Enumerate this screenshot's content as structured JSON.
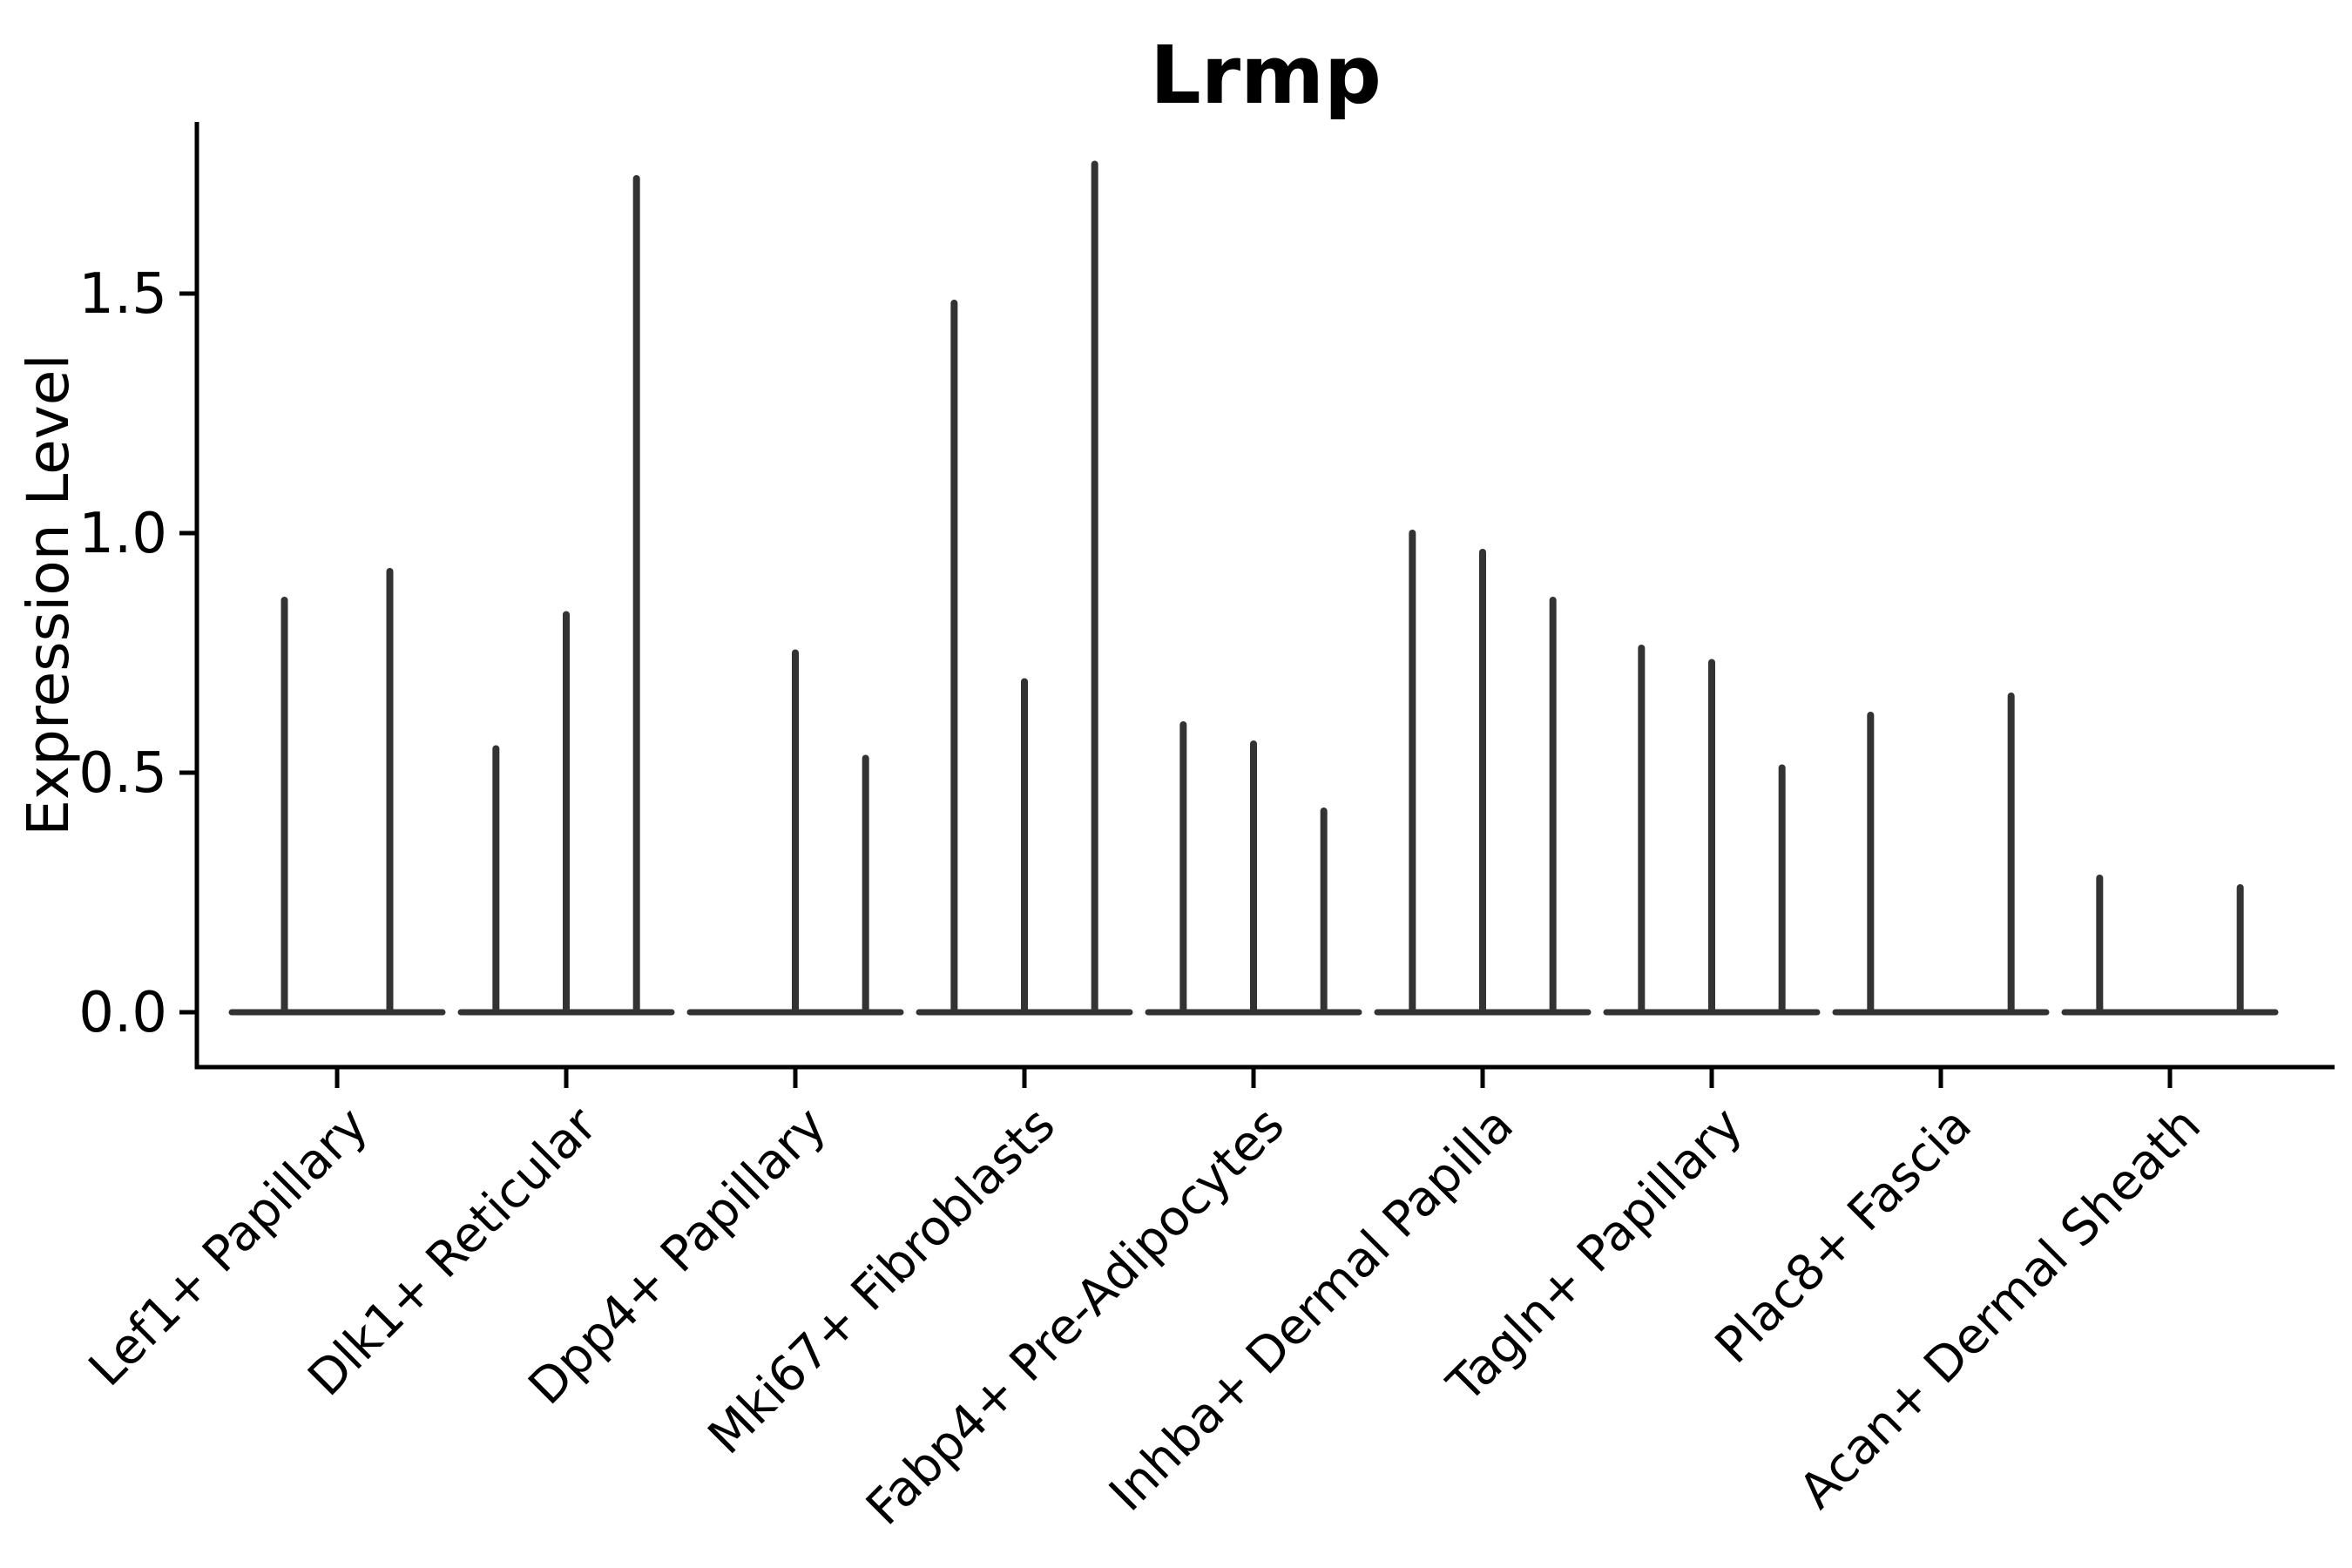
{
  "chart_data": {
    "type": "violin",
    "title": "Lrmp",
    "xlabel": "",
    "ylabel": "Expression Level",
    "ylim": [
      -0.12,
      1.85
    ],
    "yticks": [
      0.0,
      0.5,
      1.0,
      1.5
    ],
    "ytick_labels": [
      "0.0",
      "0.5",
      "1.0",
      "1.5"
    ],
    "grid": false,
    "legend_position": "none",
    "x_label_rotation_deg": 45,
    "categories": [
      "Lef1+ Papillary",
      "Dlk1+ Reticular",
      "Dpp4+ Papillary",
      "Mki67+ Fibroblasts",
      "Fabp4+ Pre-Adipocytes",
      "Inhba+ Dermal Papilla",
      "Tagln+ Papillary",
      "Plac8+ Fascia",
      "Acan+ Dermal Sheath"
    ],
    "groups": [
      {
        "category": "Lef1+ Papillary",
        "violin_max_expression": [
          0.86,
          0.92
        ]
      },
      {
        "category": "Dlk1+ Reticular",
        "violin_max_expression": [
          0.55,
          0.83,
          1.74
        ]
      },
      {
        "category": "Dpp4+ Papillary",
        "violin_max_expression": [
          0.0,
          0.75,
          0.53
        ]
      },
      {
        "category": "Mki67+ Fibroblasts",
        "violin_max_expression": [
          1.48,
          0.69,
          1.77
        ]
      },
      {
        "category": "Fabp4+ Pre-Adipocytes",
        "violin_max_expression": [
          0.6,
          0.56,
          0.42
        ]
      },
      {
        "category": "Inhba+ Dermal Papilla",
        "violin_max_expression": [
          1.0,
          0.96,
          0.86
        ]
      },
      {
        "category": "Tagln+ Papillary",
        "violin_max_expression": [
          0.76,
          0.73,
          0.51
        ]
      },
      {
        "category": "Plac8+ Fascia",
        "violin_max_expression": [
          0.62,
          0.0,
          0.66
        ]
      },
      {
        "category": "Acan+ Dermal Sheath",
        "violin_max_expression": [
          0.28,
          0.0,
          0.26
        ]
      }
    ],
    "violin_description": "Each category shows flat violins at expression 0 with a thin density spike reaching the listed maximum; a value of 0.0 means that violin is completely flat (no spike)."
  },
  "colors": {
    "violin_line": "#333333",
    "axis": "#000000",
    "text": "#000000",
    "background": "#ffffff"
  }
}
